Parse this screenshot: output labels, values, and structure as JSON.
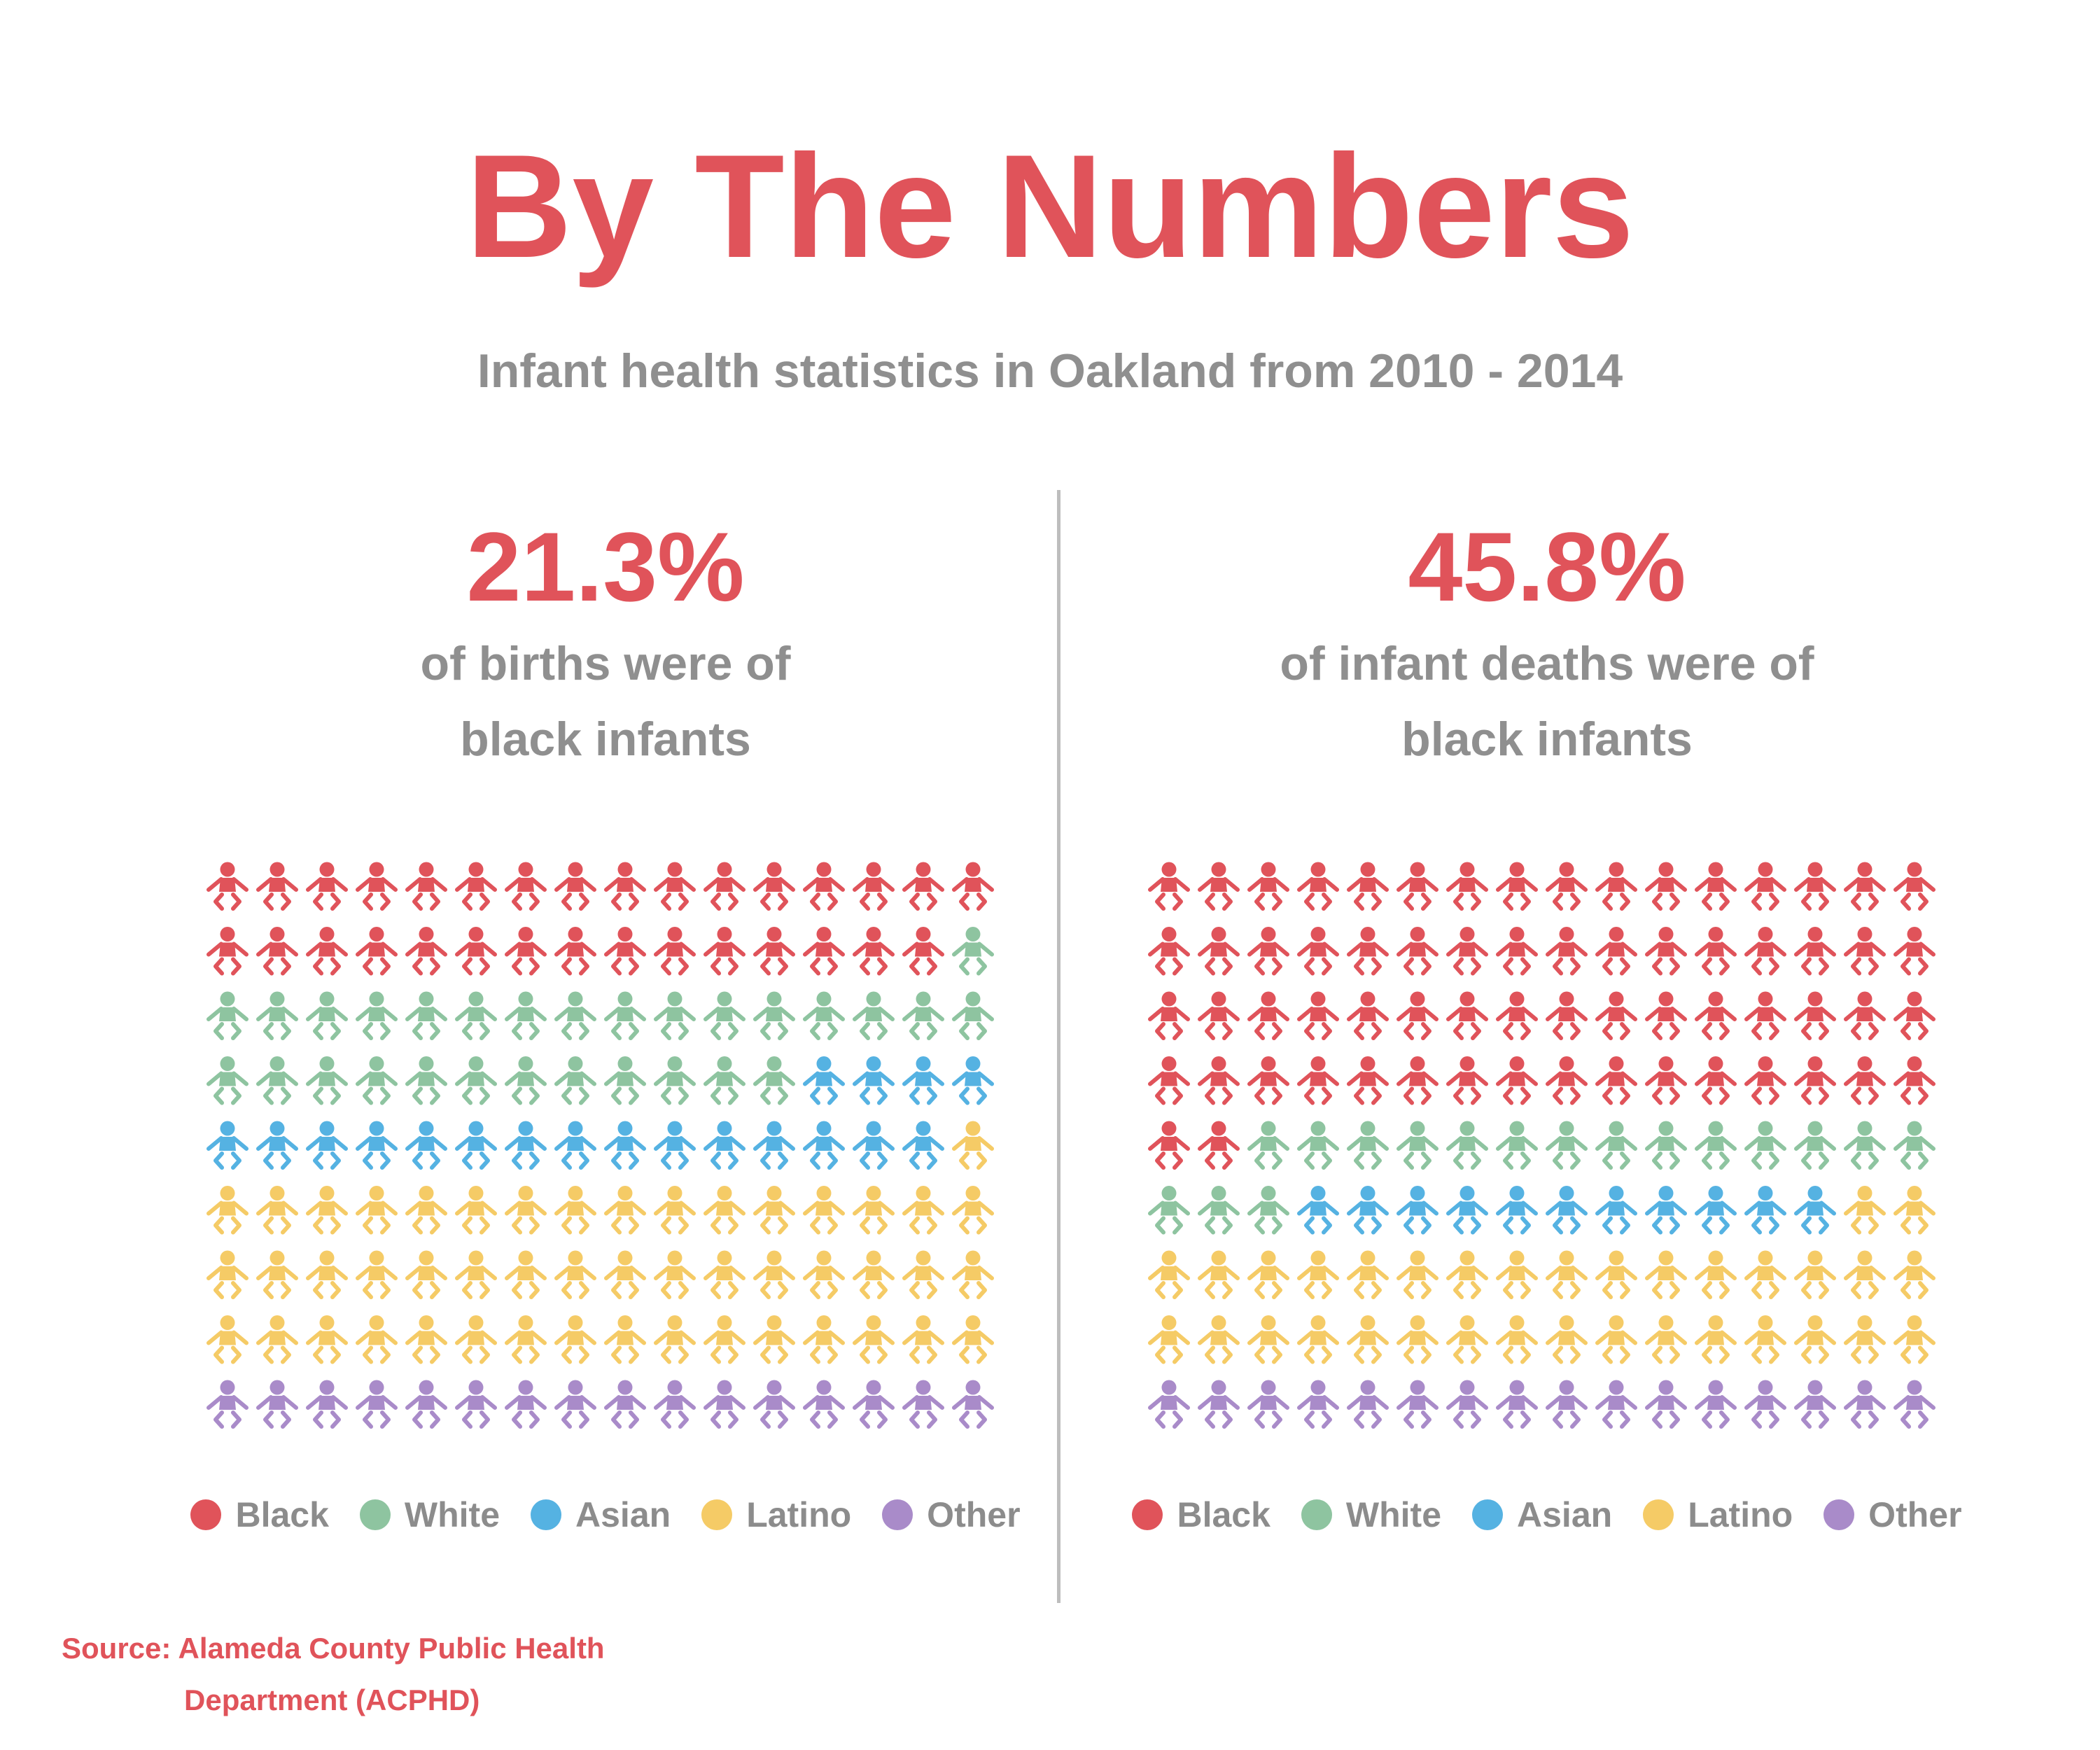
{
  "title": "By The Numbers",
  "subtitle": "Infant health statistics in Oakland from 2010 - 2014",
  "colors": {
    "accent": "#e0535a",
    "Black": "#e0535a",
    "White": "#8ec4a0",
    "Asian": "#55b2e2",
    "Latino": "#f5cb66",
    "Other": "#a98bc9"
  },
  "icon": "baby-icon",
  "legend": [
    "Black",
    "White",
    "Asian",
    "Latino",
    "Other"
  ],
  "panels": [
    {
      "percent": "21.3%",
      "desc_line1": "of births were of",
      "desc_line2": "black infants"
    },
    {
      "percent": "45.8%",
      "desc_line1": "of infant deaths were of",
      "desc_line2": "black infants"
    }
  ],
  "chart_data": [
    {
      "type": "waffle",
      "title": "of births were of black infants",
      "highlight": "21.3%",
      "grid": {
        "rows": 9,
        "cols": 16
      },
      "categories": [
        "Black",
        "White",
        "Asian",
        "Latino",
        "Other"
      ],
      "values": [
        31,
        29,
        19,
        49,
        16
      ],
      "unit": "icons (of 144)"
    },
    {
      "type": "waffle",
      "title": "of infant deaths were of black infants",
      "highlight": "45.8%",
      "grid": {
        "rows": 9,
        "cols": 16
      },
      "categories": [
        "Black",
        "White",
        "Asian",
        "Latino",
        "Other"
      ],
      "values": [
        66,
        17,
        11,
        34,
        16
      ],
      "unit": "icons (of 144)"
    }
  ],
  "source_line1": "Source: Alameda County Public Health",
  "source_line2": "Department (ACPHD)"
}
